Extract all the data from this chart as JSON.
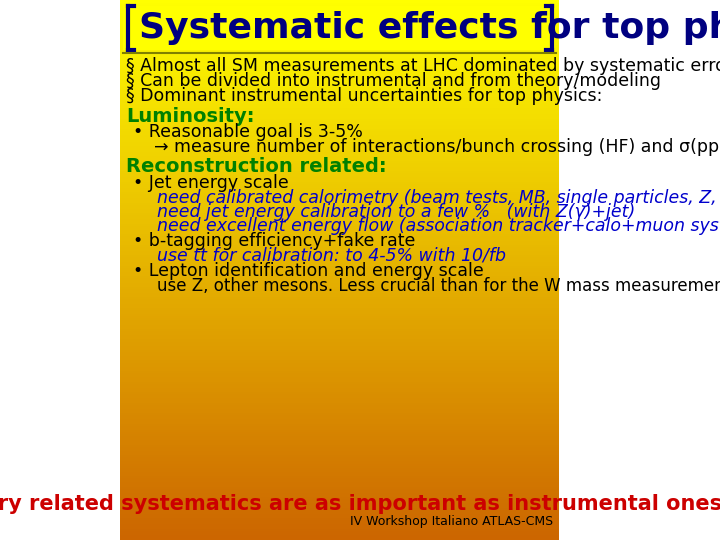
{
  "bg_top_color": "#FFFF00",
  "bg_bottom_color": "#CC6600",
  "title": "Systematic effects for top physics",
  "title_color": "#000080",
  "title_fontsize": 26,
  "bracket_color": "#000080",
  "header_sep_color": "#808000",
  "bullet_color": "#000000",
  "bullet_fontsize": 12.5,
  "bullet1": "§ Almost all SM measurements at LHC dominated by systematic errors.",
  "bullet2": "§ Can be divided into instrumental and from theory/modeling",
  "bullet3": "§ Dominant instrumental uncertainties for top physics:",
  "lumi_header": "Luminosity:",
  "lumi_header_color": "#008000",
  "lumi_header_fontsize": 14,
  "lumi_b1": "• Reasonable goal is 3-5%",
  "lumi_b1_color": "#000000",
  "lumi_b2": "→ measure number of interactions/bunch crossing (HF) and σ(pp) (TOTEM)",
  "lumi_b2_color": "#000000",
  "reco_header": "Reconstruction related:",
  "reco_header_color": "#008000",
  "reco_header_fontsize": 14,
  "reco_b1": "• Jet energy scale",
  "reco_b1_color": "#000000",
  "reco_b2": "need calibrated calorimetry (beam tests, MB, single particles, Z, W…)",
  "reco_b2_color": "#0000CC",
  "reco_b3": "need jet energy calibration to a few %   (with Z(γ)+jet)",
  "reco_b3_color": "#0000CC",
  "reco_b4": "need excellent energy flow (association tracker+calo+muon system)",
  "reco_b4_color": "#0000CC",
  "reco_b5": "• b-tagging efficiency+fake rate",
  "reco_b5_color": "#000000",
  "reco_b6": "use tt for calibration: to 4-5% with 10/fb",
  "reco_b6_color": "#0000CC",
  "reco_b7": "• Lepton identification and energy scale",
  "reco_b7_color": "#000000",
  "reco_b8": "use Z, other mesons. Less crucial than for the W mass measurement",
  "reco_b8_color": "#000000",
  "theory_line": "Theory related systematics are as important as instrumental ones !",
  "theory_color": "#CC0000",
  "theory_fontsize": 15,
  "footer": "IV Workshop Italiano ATLAS-CMS",
  "footer_color": "#000000",
  "footer_fontsize": 9
}
